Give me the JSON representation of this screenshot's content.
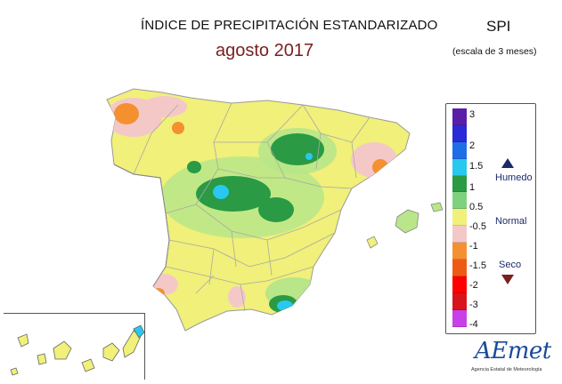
{
  "title": "ÍNDICE DE PRECIPITACIÓN ESTANDARIZADO",
  "subtitle": "agosto 2017",
  "index_name": "SPI",
  "index_scale": "(escala de 3 meses)",
  "legend": {
    "ticks": [
      "3",
      "2",
      "1.5",
      "1",
      "0.5",
      "-0.5",
      "-1",
      "-1.5",
      "-2",
      "-3",
      "-4"
    ],
    "colors": [
      "#5a1fa8",
      "#2a2ad6",
      "#1e6ee8",
      "#28c8f0",
      "#2a9a44",
      "#7ed27e",
      "#f0f07a",
      "#f5c8c8",
      "#f59030",
      "#ee5a16",
      "#ff0000",
      "#d8141a",
      "#c840e8"
    ],
    "humid_label": "Humedo",
    "normal_label": "Normal",
    "dry_label": "Seco"
  },
  "logo": {
    "name": "AEmet",
    "subtitle": "Agencia Estatal de Meteorología"
  }
}
